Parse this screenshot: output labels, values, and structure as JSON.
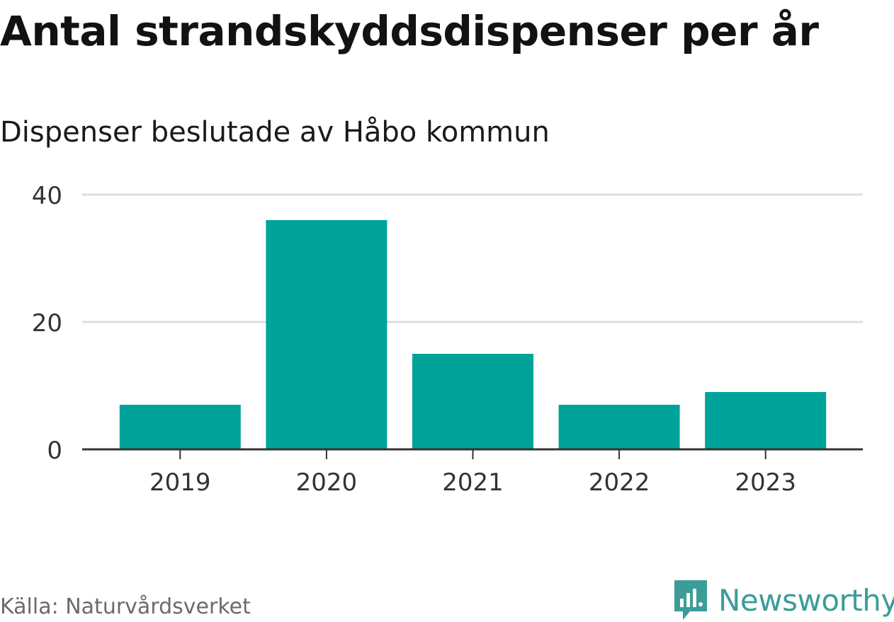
{
  "header": {
    "title": "Antal strandskyddsdispenser per år",
    "subtitle": "Dispenser beslutade av Håbo kommun"
  },
  "footer": {
    "source": "Källa: Naturvårdsverket",
    "brand": "Newsworthy"
  },
  "colors": {
    "bar": "#00a39a",
    "grid": "#dddddd",
    "axis": "#333333",
    "brand": "#3b9c98"
  },
  "chart_data": {
    "type": "bar",
    "categories": [
      "2019",
      "2020",
      "2021",
      "2022",
      "2023"
    ],
    "values": [
      7,
      36,
      15,
      7,
      9
    ],
    "ylim": [
      0,
      40
    ],
    "yticks": [
      0,
      20,
      40
    ],
    "grid": true
  }
}
